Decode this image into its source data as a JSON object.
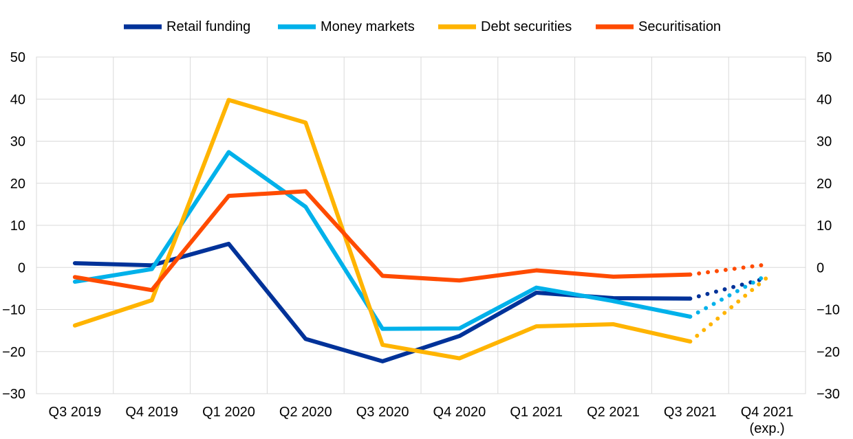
{
  "chart_data": {
    "type": "line",
    "categories": [
      "Q3 2019",
      "Q4 2019",
      "Q1 2020",
      "Q2 2020",
      "Q3 2020",
      "Q4 2020",
      "Q1 2021",
      "Q2 2021",
      "Q3 2021",
      "Q4 2021"
    ],
    "category_sublabels": [
      "",
      "",
      "",
      "",
      "",
      "",
      "",
      "",
      "",
      "(exp.)"
    ],
    "ylim": [
      -30,
      50
    ],
    "yticks": [
      -30,
      -20,
      -10,
      0,
      10,
      20,
      30,
      40,
      50
    ],
    "grid": true,
    "legend_position": "top",
    "last_segment_style": "dotted",
    "series": [
      {
        "name": "Retail funding",
        "color": "#003299",
        "values": [
          1.0,
          0.5,
          5.6,
          -17.0,
          -22.3,
          -16.3,
          -6.0,
          -7.3,
          -7.4,
          -2.5
        ]
      },
      {
        "name": "Money markets",
        "color": "#00B1EA",
        "values": [
          -3.4,
          -0.4,
          27.4,
          14.4,
          -14.6,
          -14.5,
          -4.8,
          -8.0,
          -11.7,
          -1.8
        ]
      },
      {
        "name": "Debt securities",
        "color": "#FFB400",
        "values": [
          -13.8,
          -7.8,
          39.8,
          34.4,
          -18.4,
          -21.6,
          -14.0,
          -13.5,
          -17.6,
          -2.4
        ]
      },
      {
        "name": "Securitisation",
        "color": "#FF4B00",
        "values": [
          -2.3,
          -5.4,
          17.0,
          18.1,
          -2.0,
          -3.1,
          -0.7,
          -2.2,
          -1.7,
          0.7
        ]
      }
    ]
  }
}
